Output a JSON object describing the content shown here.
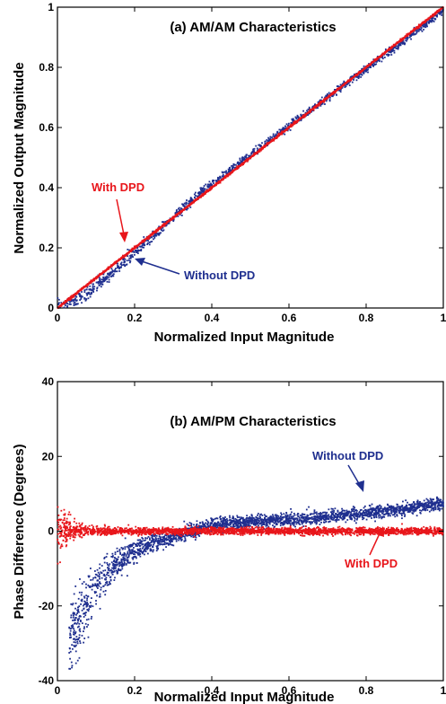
{
  "chart_data": [
    {
      "type": "scatter",
      "title": "(a) AM/AM Characteristics",
      "xlabel": "Normalized Input Magnitude",
      "ylabel": "Normalized Output Magnitude",
      "xlim": [
        0,
        1
      ],
      "ylim": [
        0,
        1
      ],
      "xticks": [
        "0",
        "0.2",
        "0.4",
        "0.6",
        "0.8",
        "1"
      ],
      "yticks": [
        "0",
        "0.2",
        "0.4",
        "0.6",
        "0.8",
        "1"
      ],
      "grid": false,
      "series": [
        {
          "name": "Without DPD",
          "color": "#1f2f8f",
          "x": [
            0,
            0.05,
            0.1,
            0.15,
            0.2,
            0.25,
            0.3,
            0.35,
            0.4,
            0.45,
            0.5,
            0.6,
            0.7,
            0.8,
            0.9,
            1.0
          ],
          "y": [
            0,
            0.025,
            0.07,
            0.125,
            0.185,
            0.24,
            0.3,
            0.36,
            0.41,
            0.46,
            0.51,
            0.605,
            0.7,
            0.795,
            0.89,
            0.99
          ]
        },
        {
          "name": "With DPD",
          "color": "#e8161b",
          "x": [
            0,
            0.2,
            0.4,
            0.6,
            0.8,
            1.0
          ],
          "y": [
            0,
            0.2,
            0.4,
            0.6,
            0.8,
            1.0
          ]
        }
      ],
      "annotations": [
        {
          "text": "With DPD",
          "color": "#e8161b"
        },
        {
          "text": "Without DPD",
          "color": "#1f2f8f"
        }
      ]
    },
    {
      "type": "scatter",
      "title": "(b) AM/PM Characteristics",
      "xlabel": "Normalized Input Magnitude",
      "ylabel": "Phase Difference (Degrees)",
      "xlim": [
        0,
        1
      ],
      "ylim": [
        -40,
        40
      ],
      "xticks": [
        "0",
        "0.2",
        "0.4",
        "0.6",
        "0.8",
        "1"
      ],
      "yticks": [
        "-40",
        "-20",
        "0",
        "20",
        "40"
      ],
      "grid": false,
      "series": [
        {
          "name": "Without DPD",
          "color": "#1f2f8f",
          "x": [
            0.03,
            0.05,
            0.1,
            0.15,
            0.2,
            0.25,
            0.3,
            0.35,
            0.4,
            0.5,
            0.6,
            0.7,
            0.8,
            0.9,
            1.0
          ],
          "y": [
            -30,
            -25,
            -15,
            -9,
            -5,
            -3,
            -1.5,
            0,
            1.5,
            2.5,
            3,
            3.8,
            4.8,
            6,
            7.5
          ]
        },
        {
          "name": "With DPD",
          "color": "#e8161b",
          "x": [
            0.0,
            0.05,
            0.1,
            0.2,
            0.3,
            0.4,
            0.6,
            0.8,
            1.0
          ],
          "y": [
            0,
            0,
            0,
            0,
            0,
            0,
            0,
            0,
            0
          ]
        }
      ],
      "annotations": [
        {
          "text": "Without DPD",
          "color": "#1f2f8f"
        },
        {
          "text": "With DPD",
          "color": "#e8161b"
        }
      ]
    }
  ]
}
